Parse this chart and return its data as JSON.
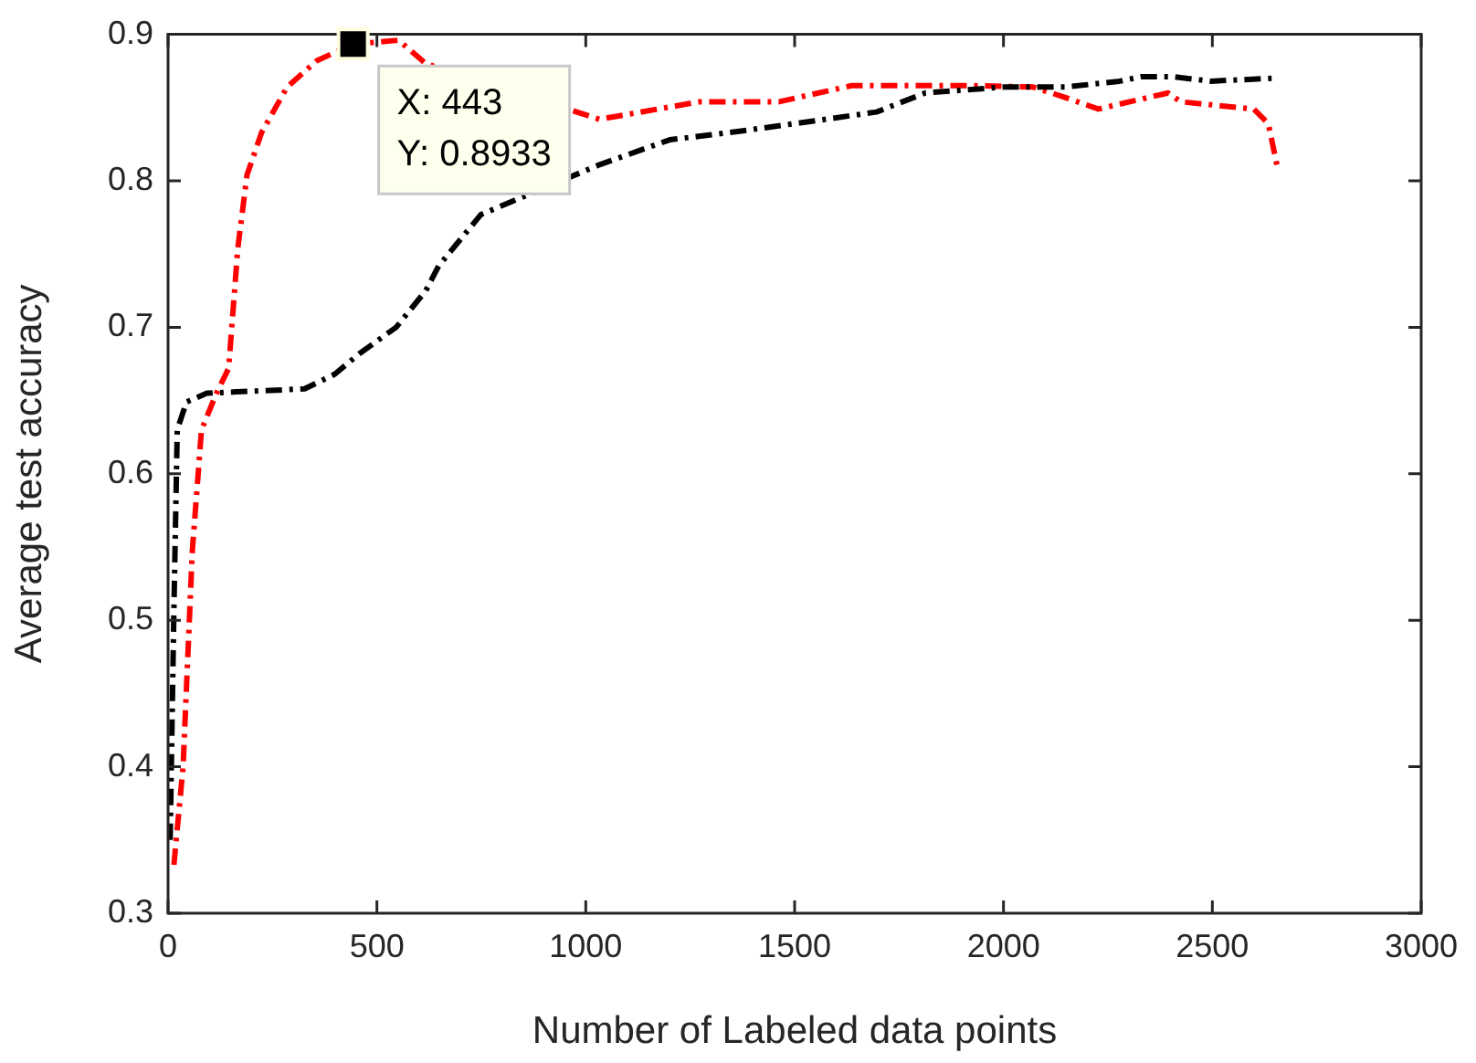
{
  "chart_data": {
    "type": "line",
    "xlabel": "Number of Labeled data points",
    "ylabel": "Average test accuracy",
    "xlim": [
      0,
      3000
    ],
    "xticks": [
      0,
      500,
      1000,
      1500,
      2000,
      2500,
      3000
    ],
    "ylim": [
      0.3,
      0.9
    ],
    "yticks": [
      0.3,
      0.4,
      0.5,
      0.6,
      0.7,
      0.8,
      0.9
    ],
    "grid": false,
    "legend": false,
    "marker": "none",
    "line_style": "dashed",
    "series": [
      {
        "color": "#000000",
        "x": [
          5,
          14,
          22,
          44,
          93,
          327,
          399,
          458,
          546,
          617,
          648,
          749,
          1033,
          1201,
          1346,
          1550,
          1696,
          1813,
          2001,
          2147,
          2278,
          2329,
          2409,
          2496,
          2642
        ],
        "values": [
          0.35,
          0.507,
          0.63,
          0.649,
          0.655,
          0.658,
          0.668,
          0.682,
          0.7,
          0.725,
          0.742,
          0.777,
          0.811,
          0.828,
          0.833,
          0.841,
          0.847,
          0.86,
          0.864,
          0.864,
          0.868,
          0.871,
          0.871,
          0.868,
          0.87
        ]
      },
      {
        "color": "#ff0000",
        "x": [
          14,
          36,
          58,
          80,
          116,
          145,
          167,
          189,
          224,
          285,
          356,
          443,
          552,
          617,
          1033,
          1273,
          1463,
          1637,
          1926,
          2071,
          2147,
          2227,
          2394,
          2424,
          2599,
          2634,
          2656
        ],
        "values": [
          0.333,
          0.4,
          0.547,
          0.63,
          0.655,
          0.672,
          0.754,
          0.804,
          0.833,
          0.864,
          0.882,
          0.8933,
          0.896,
          0.88,
          0.842,
          0.854,
          0.854,
          0.865,
          0.865,
          0.864,
          0.857,
          0.849,
          0.86,
          0.854,
          0.849,
          0.839,
          0.809
        ]
      }
    ],
    "annotations": [
      {
        "text": "X: 443\nY: 0.8933",
        "x": 443,
        "y": 0.8933
      }
    ]
  }
}
